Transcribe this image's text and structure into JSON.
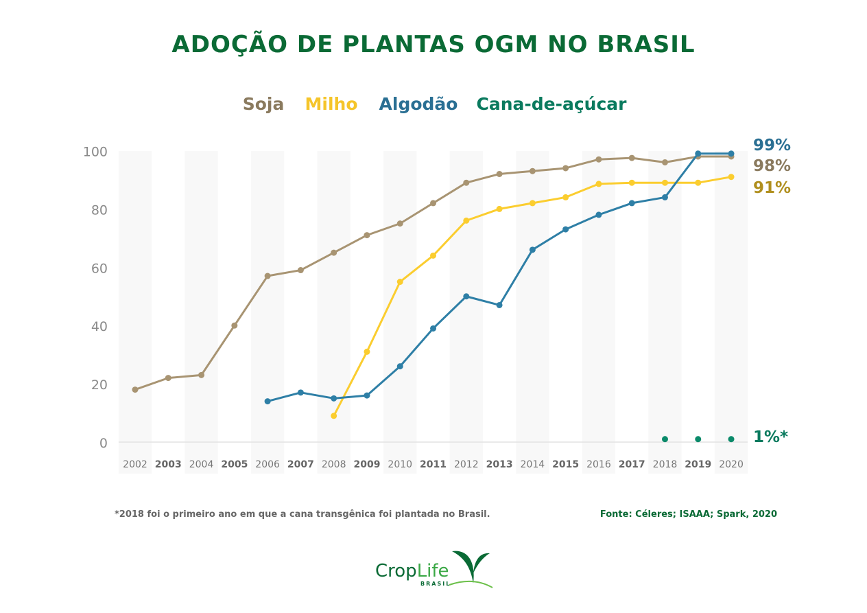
{
  "chart_data": {
    "type": "line",
    "title": "ADOÇÃO DE PLANTAS OGM NO BRASIL",
    "xlabel": "",
    "ylabel": "",
    "x": [
      2002,
      2003,
      2004,
      2005,
      2006,
      2007,
      2008,
      2009,
      2010,
      2011,
      2012,
      2013,
      2014,
      2015,
      2016,
      2017,
      2018,
      2019,
      2020
    ],
    "ylim": [
      0,
      100
    ],
    "yticks": [
      0,
      20,
      40,
      60,
      80,
      100
    ],
    "grid": false,
    "legend_placement": "top-center",
    "series": [
      {
        "name": "Soja",
        "color": "#a89472",
        "label_color": "#8a7a5e",
        "end_label": "98%",
        "values": [
          18,
          22,
          23,
          40,
          57,
          59,
          65,
          71,
          75,
          82,
          89,
          92,
          93,
          94,
          97,
          97.5,
          96,
          98,
          98
        ]
      },
      {
        "name": "Milho",
        "color": "#fbcd2f",
        "label_color": "#b08f1e",
        "end_label": "91%",
        "values": [
          null,
          null,
          null,
          null,
          null,
          null,
          9,
          31,
          55,
          64,
          76,
          80,
          82,
          84,
          88.6,
          89,
          89,
          89,
          91
        ]
      },
      {
        "name": "Algodão",
        "color": "#2e7fa6",
        "label_color": "#2a6f93",
        "end_label": "99%",
        "values": [
          null,
          null,
          null,
          null,
          14,
          17,
          15,
          16,
          26,
          39,
          50,
          47,
          66,
          73,
          78,
          82,
          84,
          99,
          99
        ]
      },
      {
        "name": "Cana-de-açúcar",
        "color": "#0a8a6a",
        "label_color": "#0a7a5e",
        "end_label": "1%*",
        "values": [
          null,
          null,
          null,
          null,
          null,
          null,
          null,
          null,
          null,
          null,
          null,
          null,
          null,
          null,
          null,
          null,
          1,
          1,
          1
        ]
      }
    ],
    "footnote": "*2018 foi o primeiro ano em que a cana transgênica foi plantada no Brasil.",
    "source": "Fonte: Céleres; ISAAA; Spark, 2020"
  },
  "logo": {
    "name": "CropLife",
    "sub": "BRASIL"
  }
}
